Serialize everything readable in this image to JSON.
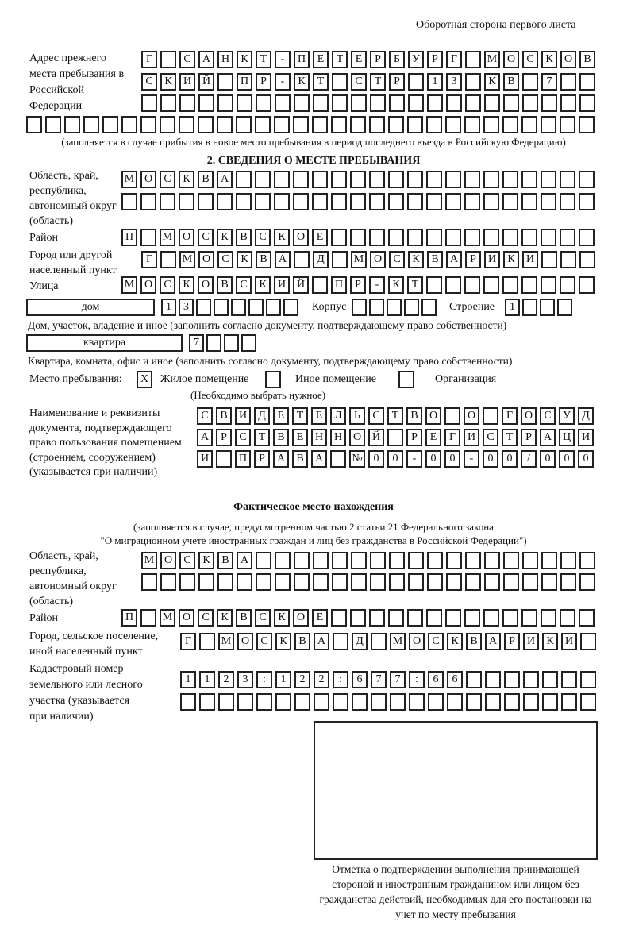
{
  "header": {
    "page_side": "Оборотная сторона первого листа"
  },
  "previous_address": {
    "label": "Адрес прежнего места пребывания в Российской Федерации",
    "rows": [
      [
        "Г",
        "",
        "С",
        "А",
        "Н",
        "К",
        "Т",
        "-",
        "П",
        "Е",
        "Т",
        "Е",
        "Р",
        "Б",
        "У",
        "Р",
        "Г",
        "",
        "М",
        "О",
        "С",
        "К",
        "О",
        "В"
      ],
      [
        "С",
        "К",
        "И",
        "Й",
        "",
        "П",
        "Р",
        "-",
        "К",
        "Т",
        "",
        "С",
        "Т",
        "Р",
        "",
        "1",
        "3",
        "",
        "К",
        "В",
        "",
        "7",
        "",
        ""
      ],
      [
        "",
        "",
        "",
        "",
        "",
        "",
        "",
        "",
        "",
        "",
        "",
        "",
        "",
        "",
        "",
        "",
        "",
        "",
        "",
        "",
        "",
        "",
        "",
        ""
      ],
      [
        "",
        "",
        "",
        "",
        "",
        "",
        "",
        "",
        "",
        "",
        "",
        "",
        "",
        "",
        "",
        "",
        "",
        "",
        "",
        "",
        "",
        "",
        "",
        "",
        "",
        "",
        "",
        "",
        "",
        ""
      ]
    ],
    "note": "(заполняется в случае прибытия в новое место пребывания в период последнего въезда в Российскую Федерацию)"
  },
  "section2": {
    "title": "2. СВЕДЕНИЯ О МЕСТЕ ПРЕБЫВАНИЯ",
    "region_label": "Область, край, республика, автономный округ (область)",
    "region_rows": [
      [
        "М",
        "О",
        "С",
        "К",
        "В",
        "А",
        "",
        "",
        "",
        "",
        "",
        "",
        "",
        "",
        "",
        "",
        "",
        "",
        "",
        "",
        "",
        "",
        "",
        "",
        ""
      ],
      [
        "",
        "",
        "",
        "",
        "",
        "",
        "",
        "",
        "",
        "",
        "",
        "",
        "",
        "",
        "",
        "",
        "",
        "",
        "",
        "",
        "",
        "",
        "",
        "",
        ""
      ]
    ],
    "district_label": "Район",
    "district_row": [
      "П",
      "",
      "М",
      "О",
      "С",
      "К",
      "В",
      "С",
      "К",
      "О",
      "Е",
      "",
      "",
      "",
      "",
      "",
      "",
      "",
      "",
      "",
      "",
      "",
      "",
      "",
      ""
    ],
    "city_label": "Город или другой населенный пункт",
    "city_row": [
      "Г",
      "",
      "М",
      "О",
      "С",
      "К",
      "В",
      "А",
      "",
      "Д",
      "",
      "М",
      "О",
      "С",
      "К",
      "В",
      "А",
      "Р",
      "И",
      "К",
      "И",
      "",
      "",
      ""
    ],
    "street_label": "Улица",
    "street_row": [
      "М",
      "О",
      "С",
      "К",
      "О",
      "В",
      "С",
      "К",
      "И",
      "Й",
      "",
      "П",
      "Р",
      "-",
      "К",
      "Т",
      "",
      "",
      "",
      "",
      "",
      "",
      "",
      "",
      ""
    ],
    "house_type": "дом",
    "house_cells": [
      "1",
      "3",
      "",
      "",
      "",
      "",
      "",
      ""
    ],
    "korpus_label": "Корпус",
    "korpus_cells": [
      "",
      "",
      "",
      "",
      ""
    ],
    "building_label": "Строение",
    "building_cells": [
      "1",
      "",
      "",
      ""
    ],
    "house_note": "Дом, участок, владение и иное (заполнить согласно документу, подтверждающему право собственности)",
    "flat_type": "квартира",
    "flat_cells": [
      "7",
      "",
      "",
      ""
    ],
    "flat_note": "Квартира, комната, офис и иное (заполнить согласно документу, подтверждающему право собственности)",
    "stay_place_label": "Место пребывания:",
    "options": [
      {
        "label": "Жилое помещение",
        "mark": "X"
      },
      {
        "label": "Иное помещение",
        "mark": ""
      },
      {
        "label": "Организация",
        "mark": ""
      }
    ],
    "options_note": "(Необходимо выбрать нужное)",
    "doc_label": "Наименование и реквизиты документа, подтверждающего право пользования помещением (строением, сооружением) (указывается при наличии)",
    "doc_rows": [
      [
        "С",
        "В",
        "И",
        "Д",
        "Е",
        "Т",
        "Е",
        "Л",
        "Ь",
        "С",
        "Т",
        "В",
        "О",
        "",
        "О",
        "",
        "Г",
        "О",
        "С",
        "У",
        "Д"
      ],
      [
        "А",
        "Р",
        "С",
        "Т",
        "В",
        "Е",
        "Н",
        "Н",
        "О",
        "Й",
        "",
        "Р",
        "Е",
        "Г",
        "И",
        "С",
        "Т",
        "Р",
        "А",
        "Ц",
        "И"
      ],
      [
        "И",
        "",
        "П",
        "Р",
        "А",
        "В",
        "А",
        "",
        "№",
        "0",
        "0",
        "-",
        "0",
        "0",
        "-",
        "0",
        "0",
        "/",
        "0",
        "0",
        "0"
      ]
    ]
  },
  "actual": {
    "title": "Фактическое место нахождения",
    "note1": "(заполняется в случае, предусмотренном частью 2 статьи 21 Федерального закона",
    "note2": "\"О миграционном учете иностранных граждан и лиц без гражданства в Российской Федерации\")",
    "region_label": "Область, край, республика, автономный округ (область)",
    "region_rows": [
      [
        "М",
        "О",
        "С",
        "К",
        "В",
        "А",
        "",
        "",
        "",
        "",
        "",
        "",
        "",
        "",
        "",
        "",
        "",
        "",
        "",
        "",
        "",
        "",
        "",
        ""
      ],
      [
        "",
        "",
        "",
        "",
        "",
        "",
        "",
        "",
        "",
        "",
        "",
        "",
        "",
        "",
        "",
        "",
        "",
        "",
        "",
        "",
        "",
        "",
        "",
        ""
      ]
    ],
    "district_label": "Район",
    "district_row": [
      "П",
      "",
      "М",
      "О",
      "С",
      "К",
      "В",
      "С",
      "К",
      "О",
      "Е",
      "",
      "",
      "",
      "",
      "",
      "",
      "",
      "",
      "",
      "",
      "",
      "",
      "",
      ""
    ],
    "city_label": "Город, сельское поселение, иной населенный пункт",
    "city_row": [
      "Г",
      "",
      "М",
      "О",
      "С",
      "К",
      "В",
      "А",
      "",
      "Д",
      "",
      "М",
      "О",
      "С",
      "К",
      "В",
      "А",
      "Р",
      "И",
      "К",
      "И",
      ""
    ],
    "cadastral_label": "Кадастровый номер земельного или лесного участка (указывается при наличии)",
    "cadastral_rows": [
      [
        "1",
        "1",
        "2",
        "3",
        ":",
        "1",
        "2",
        "2",
        ":",
        "6",
        "7",
        "7",
        ":",
        "6",
        "6",
        "",
        "",
        "",
        "",
        "",
        "",
        ""
      ],
      [
        "",
        "",
        "",
        "",
        "",
        "",
        "",
        "",
        "",
        "",
        "",
        "",
        "",
        "",
        "",
        "",
        "",
        "",
        "",
        "",
        "",
        ""
      ]
    ]
  },
  "confirmation": {
    "caption": "Отметка о подтверждении выполнения принимающей стороной и иностранным гражданином или лицом без гражданства действий, необходимых для его постановки на учет по месту пребывания"
  }
}
